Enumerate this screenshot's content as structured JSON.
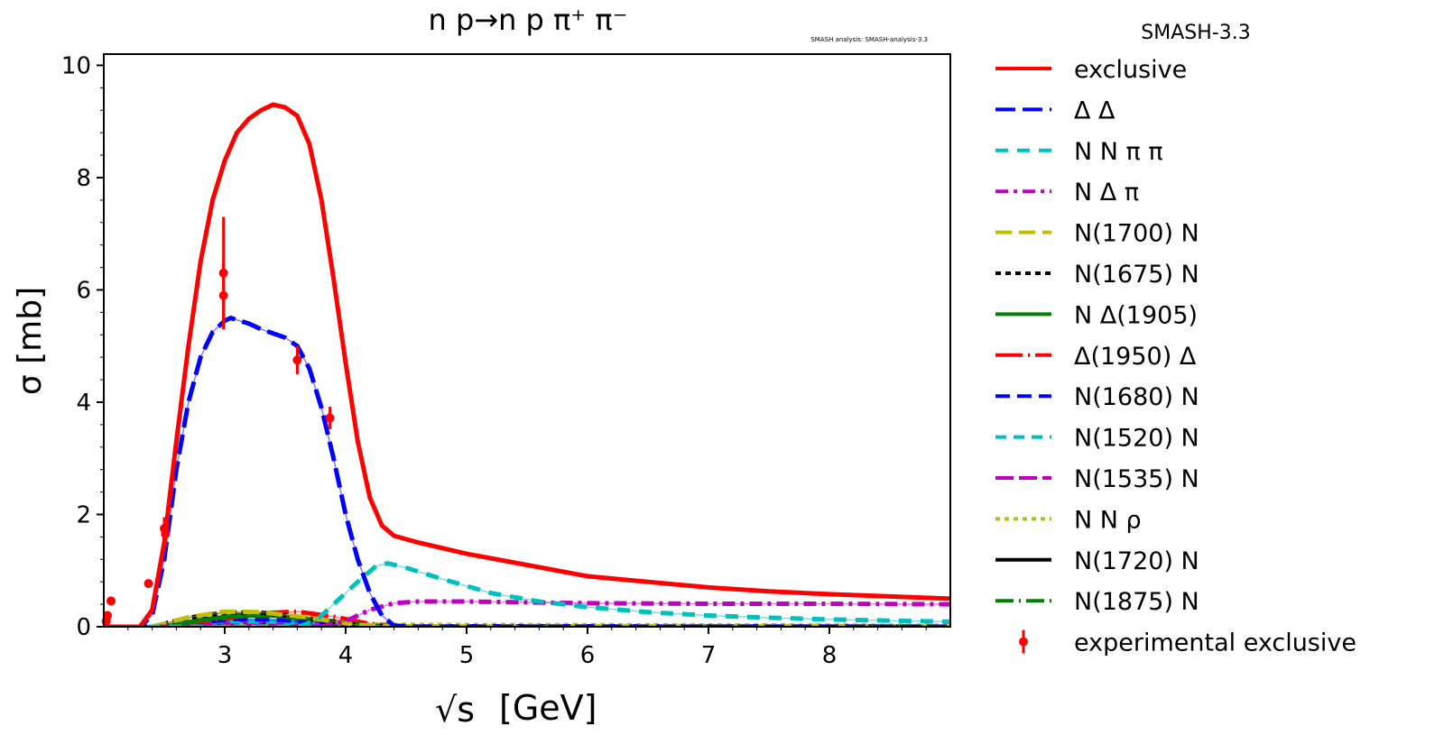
{
  "chart_data": {
    "type": "line",
    "title": "n p→n p π⁺ π⁻",
    "watermark": "SMASH analysis: SMASH-analysis-3.3",
    "legend_title": "SMASH-3.3",
    "legend_placement": "outside-right",
    "xlabel_root": "√s",
    "xlabel": "[GeV]",
    "ylabel": "σ [mb]",
    "xlim": [
      2.0,
      9.0
    ],
    "ylim": [
      0,
      10.2
    ],
    "xticks": [
      3,
      4,
      5,
      6,
      7,
      8
    ],
    "yticks": [
      0,
      2,
      4,
      6,
      8,
      10
    ],
    "grid": false,
    "series": [
      {
        "name": "exclusive",
        "color": "#ff0000",
        "dash": "",
        "points": [
          [
            2.0,
            0
          ],
          [
            2.3,
            0
          ],
          [
            2.4,
            0.3
          ],
          [
            2.5,
            1.5
          ],
          [
            2.6,
            3.3
          ],
          [
            2.7,
            5.0
          ],
          [
            2.8,
            6.5
          ],
          [
            2.9,
            7.6
          ],
          [
            3.0,
            8.3
          ],
          [
            3.1,
            8.8
          ],
          [
            3.2,
            9.05
          ],
          [
            3.3,
            9.2
          ],
          [
            3.4,
            9.3
          ],
          [
            3.5,
            9.25
          ],
          [
            3.6,
            9.1
          ],
          [
            3.7,
            8.6
          ],
          [
            3.8,
            7.6
          ],
          [
            3.9,
            6.2
          ],
          [
            4.0,
            4.7
          ],
          [
            4.1,
            3.3
          ],
          [
            4.2,
            2.3
          ],
          [
            4.3,
            1.8
          ],
          [
            4.4,
            1.62
          ],
          [
            4.6,
            1.5
          ],
          [
            5.0,
            1.3
          ],
          [
            5.5,
            1.1
          ],
          [
            6.0,
            0.9
          ],
          [
            6.5,
            0.8
          ],
          [
            7.0,
            0.7
          ],
          [
            7.5,
            0.63
          ],
          [
            8.0,
            0.58
          ],
          [
            8.5,
            0.54
          ],
          [
            9.0,
            0.5
          ]
        ]
      },
      {
        "name": "Δ Δ",
        "color": "#0000ff",
        "dash": "22,8",
        "points": [
          [
            2.0,
            0
          ],
          [
            2.3,
            0
          ],
          [
            2.4,
            0.2
          ],
          [
            2.5,
            1.2
          ],
          [
            2.6,
            2.8
          ],
          [
            2.7,
            4.0
          ],
          [
            2.8,
            4.8
          ],
          [
            2.9,
            5.25
          ],
          [
            3.0,
            5.45
          ],
          [
            3.05,
            5.5
          ],
          [
            3.2,
            5.4
          ],
          [
            3.3,
            5.3
          ],
          [
            3.5,
            5.15
          ],
          [
            3.6,
            5.0
          ],
          [
            3.7,
            4.6
          ],
          [
            3.8,
            3.9
          ],
          [
            3.9,
            3.0
          ],
          [
            4.0,
            2.0
          ],
          [
            4.1,
            1.2
          ],
          [
            4.2,
            0.6
          ],
          [
            4.3,
            0.2
          ],
          [
            4.4,
            0.02
          ],
          [
            4.6,
            0
          ],
          [
            9.0,
            0
          ]
        ]
      },
      {
        "name": "N N π π",
        "color": "#00bfbf",
        "dash": "14,10",
        "points": [
          [
            2.0,
            0
          ],
          [
            3.6,
            0
          ],
          [
            3.75,
            0.1
          ],
          [
            3.9,
            0.4
          ],
          [
            4.1,
            0.8
          ],
          [
            4.25,
            1.08
          ],
          [
            4.35,
            1.13
          ],
          [
            4.5,
            1.05
          ],
          [
            4.8,
            0.85
          ],
          [
            5.2,
            0.6
          ],
          [
            5.6,
            0.45
          ],
          [
            6.0,
            0.35
          ],
          [
            6.5,
            0.26
          ],
          [
            7.0,
            0.2
          ],
          [
            7.5,
            0.16
          ],
          [
            8.0,
            0.13
          ],
          [
            8.5,
            0.11
          ],
          [
            9.0,
            0.09
          ]
        ]
      },
      {
        "name": "N Δ π",
        "color": "#bf00bf",
        "dash": "14,6,4,6",
        "points": [
          [
            2.0,
            0
          ],
          [
            3.8,
            0
          ],
          [
            4.0,
            0.1
          ],
          [
            4.2,
            0.3
          ],
          [
            4.4,
            0.42
          ],
          [
            4.6,
            0.45
          ],
          [
            5.0,
            0.45
          ],
          [
            6.0,
            0.42
          ],
          [
            7.0,
            0.41
          ],
          [
            8.0,
            0.41
          ],
          [
            9.0,
            0.4
          ]
        ]
      },
      {
        "name": "N(1700) N",
        "color": "#bfbf00",
        "dash": "18,8",
        "points": [
          [
            2.0,
            0
          ],
          [
            2.4,
            0
          ],
          [
            2.7,
            0.17
          ],
          [
            3.0,
            0.27
          ],
          [
            3.3,
            0.26
          ],
          [
            3.7,
            0.16
          ],
          [
            4.1,
            0.03
          ],
          [
            4.4,
            0.01
          ],
          [
            9.0,
            0.01
          ]
        ]
      },
      {
        "name": "N(1675) N",
        "color": "#000000",
        "dash": "6,5",
        "points": [
          [
            2.0,
            0
          ],
          [
            2.4,
            0
          ],
          [
            2.7,
            0.16
          ],
          [
            3.0,
            0.25
          ],
          [
            3.3,
            0.25
          ],
          [
            3.7,
            0.15
          ],
          [
            4.1,
            0.03
          ],
          [
            4.4,
            0
          ],
          [
            9.0,
            0
          ]
        ]
      },
      {
        "name": "N Δ(1905)",
        "color": "#008000",
        "dash": "",
        "points": [
          [
            2.0,
            0
          ],
          [
            2.5,
            0
          ],
          [
            2.8,
            0.12
          ],
          [
            3.1,
            0.2
          ],
          [
            3.4,
            0.2
          ],
          [
            3.8,
            0.12
          ],
          [
            4.2,
            0.02
          ],
          [
            4.5,
            0
          ],
          [
            9.0,
            0
          ]
        ]
      },
      {
        "name": "Δ(1950) Δ",
        "color": "#ff0000",
        "dash": "30,6,2,6",
        "points": [
          [
            2.0,
            0
          ],
          [
            2.5,
            0
          ],
          [
            2.9,
            0.12
          ],
          [
            3.3,
            0.24
          ],
          [
            3.6,
            0.27
          ],
          [
            3.9,
            0.18
          ],
          [
            4.2,
            0.05
          ],
          [
            4.5,
            0
          ],
          [
            9.0,
            0
          ]
        ]
      },
      {
        "name": "N(1680) N",
        "color": "#0000ff",
        "dash": "16,8",
        "points": [
          [
            2.0,
            0
          ],
          [
            2.5,
            0
          ],
          [
            2.8,
            0.08
          ],
          [
            3.1,
            0.14
          ],
          [
            3.4,
            0.13
          ],
          [
            3.8,
            0.07
          ],
          [
            4.2,
            0.01
          ],
          [
            9.0,
            0
          ]
        ]
      },
      {
        "name": "N(1520) N",
        "color": "#00bfbf",
        "dash": "12,8",
        "points": [
          [
            2.0,
            0
          ],
          [
            2.4,
            0
          ],
          [
            2.7,
            0.06
          ],
          [
            3.0,
            0.1
          ],
          [
            3.4,
            0.09
          ],
          [
            3.8,
            0.05
          ],
          [
            4.2,
            0.01
          ],
          [
            9.0,
            0
          ]
        ]
      },
      {
        "name": "N(1535) N",
        "color": "#bf00bf",
        "dash": "20,6",
        "points": [
          [
            2.0,
            0
          ],
          [
            2.4,
            0
          ],
          [
            2.7,
            0.05
          ],
          [
            3.0,
            0.08
          ],
          [
            3.4,
            0.07
          ],
          [
            3.8,
            0.04
          ],
          [
            4.2,
            0.01
          ],
          [
            9.0,
            0
          ]
        ]
      },
      {
        "name": "N N ρ",
        "color": "#bfbf00",
        "dash": "5,5",
        "points": [
          [
            2.0,
            0
          ],
          [
            2.5,
            0
          ],
          [
            3.0,
            0.03
          ],
          [
            3.5,
            0.05
          ],
          [
            4.0,
            0.04
          ],
          [
            5.0,
            0.03
          ],
          [
            9.0,
            0.02
          ]
        ]
      },
      {
        "name": "N(1720) N",
        "color": "#000000",
        "dash": "",
        "points": [
          [
            2.0,
            0
          ],
          [
            2.5,
            0
          ],
          [
            2.8,
            0.04
          ],
          [
            3.1,
            0.07
          ],
          [
            3.5,
            0.06
          ],
          [
            3.9,
            0.03
          ],
          [
            4.3,
            0
          ],
          [
            9.0,
            0
          ]
        ]
      },
      {
        "name": "N(1875) N",
        "color": "#008000",
        "dash": "20,6,2,6",
        "points": [
          [
            2.0,
            0
          ],
          [
            2.5,
            0
          ],
          [
            2.9,
            0.05
          ],
          [
            3.2,
            0.09
          ],
          [
            3.6,
            0.08
          ],
          [
            4.0,
            0.03
          ],
          [
            4.4,
            0
          ],
          [
            9.0,
            0
          ]
        ]
      }
    ],
    "experimental": {
      "name": "experimental exclusive",
      "color": "#ff0000",
      "points": [
        {
          "x": 2.02,
          "y": 0.1,
          "err": 0.05
        },
        {
          "x": 2.03,
          "y": 0.2,
          "err": 0.05
        },
        {
          "x": 2.06,
          "y": 0.46,
          "err": 0.05
        },
        {
          "x": 2.37,
          "y": 0.77,
          "err": 0.05
        },
        {
          "x": 2.5,
          "y": 1.75,
          "err": 0.2
        },
        {
          "x": 2.51,
          "y": 1.65,
          "err": 0.2
        },
        {
          "x": 2.99,
          "y": 6.3,
          "err": 1.0
        },
        {
          "x": 2.99,
          "y": 5.9,
          "err": 0.6
        },
        {
          "x": 3.6,
          "y": 4.75,
          "err": 0.25
        },
        {
          "x": 3.87,
          "y": 3.72,
          "err": 0.2
        }
      ]
    }
  }
}
